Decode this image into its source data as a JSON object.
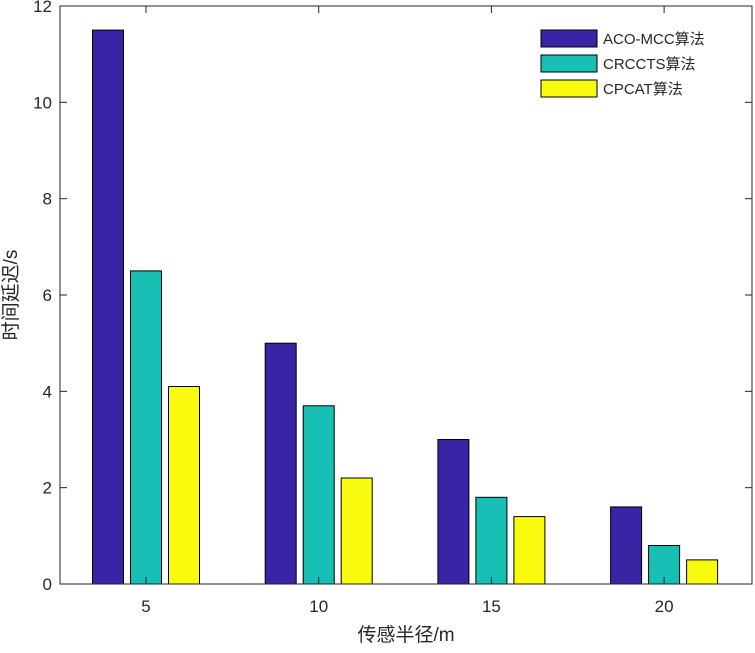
{
  "chart_data": {
    "type": "bar",
    "categories": [
      "5",
      "10",
      "15",
      "20"
    ],
    "series": [
      {
        "name": "ACO-MCC算法",
        "color": "#3A24A6",
        "values": [
          11.5,
          5.0,
          3.0,
          1.6
        ]
      },
      {
        "name": "CRCCTS算法",
        "color": "#17BFB5",
        "values": [
          6.5,
          3.7,
          1.8,
          0.8
        ]
      },
      {
        "name": "CPCAT算法",
        "color": "#F9FB0F",
        "values": [
          4.1,
          2.2,
          1.4,
          0.5
        ]
      }
    ],
    "xlabel": "传感半径/m",
    "ylabel": "时间延迟/s",
    "ylim": [
      0,
      12
    ],
    "yticks": [
      "0",
      "2",
      "4",
      "6",
      "8",
      "10",
      "12"
    ],
    "grid": false,
    "legend_position": "top-right"
  }
}
